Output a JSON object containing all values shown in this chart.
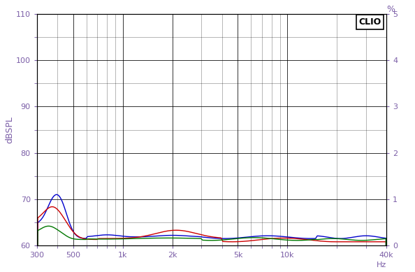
{
  "ylabel_left": "dBSPL",
  "ylabel_right": "%",
  "xlabel_right": "Hz",
  "clio_label": "CLIO",
  "ylim_left": [
    60,
    110
  ],
  "ylim_right": [
    0,
    5
  ],
  "yticks_left": [
    60,
    70,
    80,
    90,
    100,
    110
  ],
  "yticks_right": [
    0,
    1,
    2,
    3,
    4,
    5
  ],
  "xmin": 300,
  "xmax": 40000,
  "xtick_pos": [
    300,
    500,
    1000,
    2000,
    5000,
    10000,
    40000
  ],
  "xtick_labels": [
    "300",
    "500",
    "1k",
    "2k",
    "5k",
    "10k",
    "40k"
  ],
  "background_color": "#ffffff",
  "plot_bg_color": "#ffffff",
  "grid_color": "#000000",
  "label_color": "#7b5ea7",
  "tick_color": "#7b5ea7",
  "line_colors": [
    "#0000cc",
    "#cc0000",
    "#007700"
  ],
  "line_width": 1.0
}
